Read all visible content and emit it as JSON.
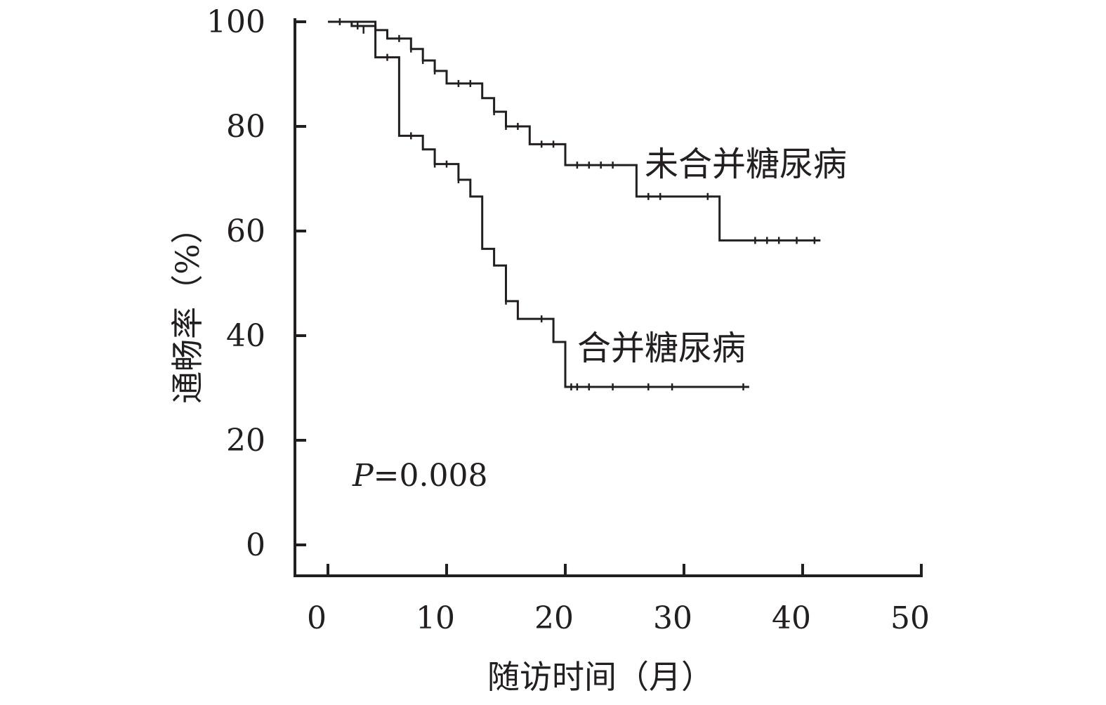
{
  "chart_data": {
    "type": "line",
    "subtype": "kaplan-meier step curve",
    "title": "",
    "xlabel": "随访时间（月）",
    "ylabel": "通畅率（%）",
    "xlim": [
      0,
      50
    ],
    "ylim": [
      0,
      100
    ],
    "xticks": [
      "0",
      "10",
      "20",
      "30",
      "40",
      "50"
    ],
    "yticks": [
      "0",
      "20",
      "40",
      "60",
      "80",
      "100"
    ],
    "grid": false,
    "legend": "none (direct labels beside curves)",
    "annotation": {
      "prefix": "P",
      "value": "=0.008"
    },
    "colors": {
      "line": "#231f20",
      "background": "#ffffff"
    },
    "series": [
      {
        "name": "未合并糖尿病",
        "steps": [
          [
            0,
            100
          ],
          [
            2,
            99.2
          ],
          [
            4,
            98.4
          ],
          [
            5,
            96.8
          ],
          [
            7,
            94.8
          ],
          [
            8,
            92.6
          ],
          [
            9,
            90.6
          ],
          [
            10,
            88.2
          ],
          [
            13,
            85.4
          ],
          [
            14,
            82.8
          ],
          [
            15,
            80
          ],
          [
            17,
            76.6
          ],
          [
            20,
            72.6
          ],
          [
            26,
            66.6
          ],
          [
            33,
            58.2
          ],
          [
            41.5,
            58.2
          ]
        ],
        "censored": [
          [
            1,
            100
          ],
          [
            2.5,
            99.2
          ],
          [
            3,
            98.4
          ],
          [
            6,
            96.8
          ],
          [
            7,
            94.8
          ],
          [
            8,
            92.6
          ],
          [
            9,
            90.6
          ],
          [
            11,
            88.2
          ],
          [
            12,
            88.2
          ],
          [
            14,
            82.8
          ],
          [
            15,
            80
          ],
          [
            16,
            80
          ],
          [
            18,
            76.6
          ],
          [
            19,
            76.6
          ],
          [
            21,
            72.6
          ],
          [
            22,
            72.6
          ],
          [
            23,
            72.6
          ],
          [
            24,
            72.6
          ],
          [
            27,
            66.6
          ],
          [
            28,
            66.6
          ],
          [
            32,
            66.6
          ],
          [
            36,
            58.2
          ],
          [
            37,
            58.2
          ],
          [
            38,
            58.2
          ],
          [
            39.5,
            58.2
          ],
          [
            41,
            58.2
          ]
        ]
      },
      {
        "name": "合并糖尿病",
        "steps": [
          [
            0,
            100
          ],
          [
            4,
            93.2
          ],
          [
            6,
            78.2
          ],
          [
            8,
            75.6
          ],
          [
            9,
            72.8
          ],
          [
            11,
            69.8
          ],
          [
            12,
            66.6
          ],
          [
            13,
            56.6
          ],
          [
            14,
            53.4
          ],
          [
            15,
            46.6
          ],
          [
            16,
            43.2
          ],
          [
            19,
            38.8
          ],
          [
            20,
            30.2
          ],
          [
            35.5,
            30.2
          ]
        ],
        "censored": [
          [
            5,
            93.2
          ],
          [
            7,
            78.2
          ],
          [
            9,
            72.8
          ],
          [
            10,
            72.8
          ],
          [
            11,
            69.8
          ],
          [
            15,
            46.6
          ],
          [
            18,
            43.2
          ],
          [
            20.5,
            30.2
          ],
          [
            21,
            30.2
          ],
          [
            22,
            30.2
          ],
          [
            24,
            30.2
          ],
          [
            27,
            30.2
          ],
          [
            29,
            30.2
          ],
          [
            35,
            30.2
          ]
        ]
      }
    ]
  }
}
